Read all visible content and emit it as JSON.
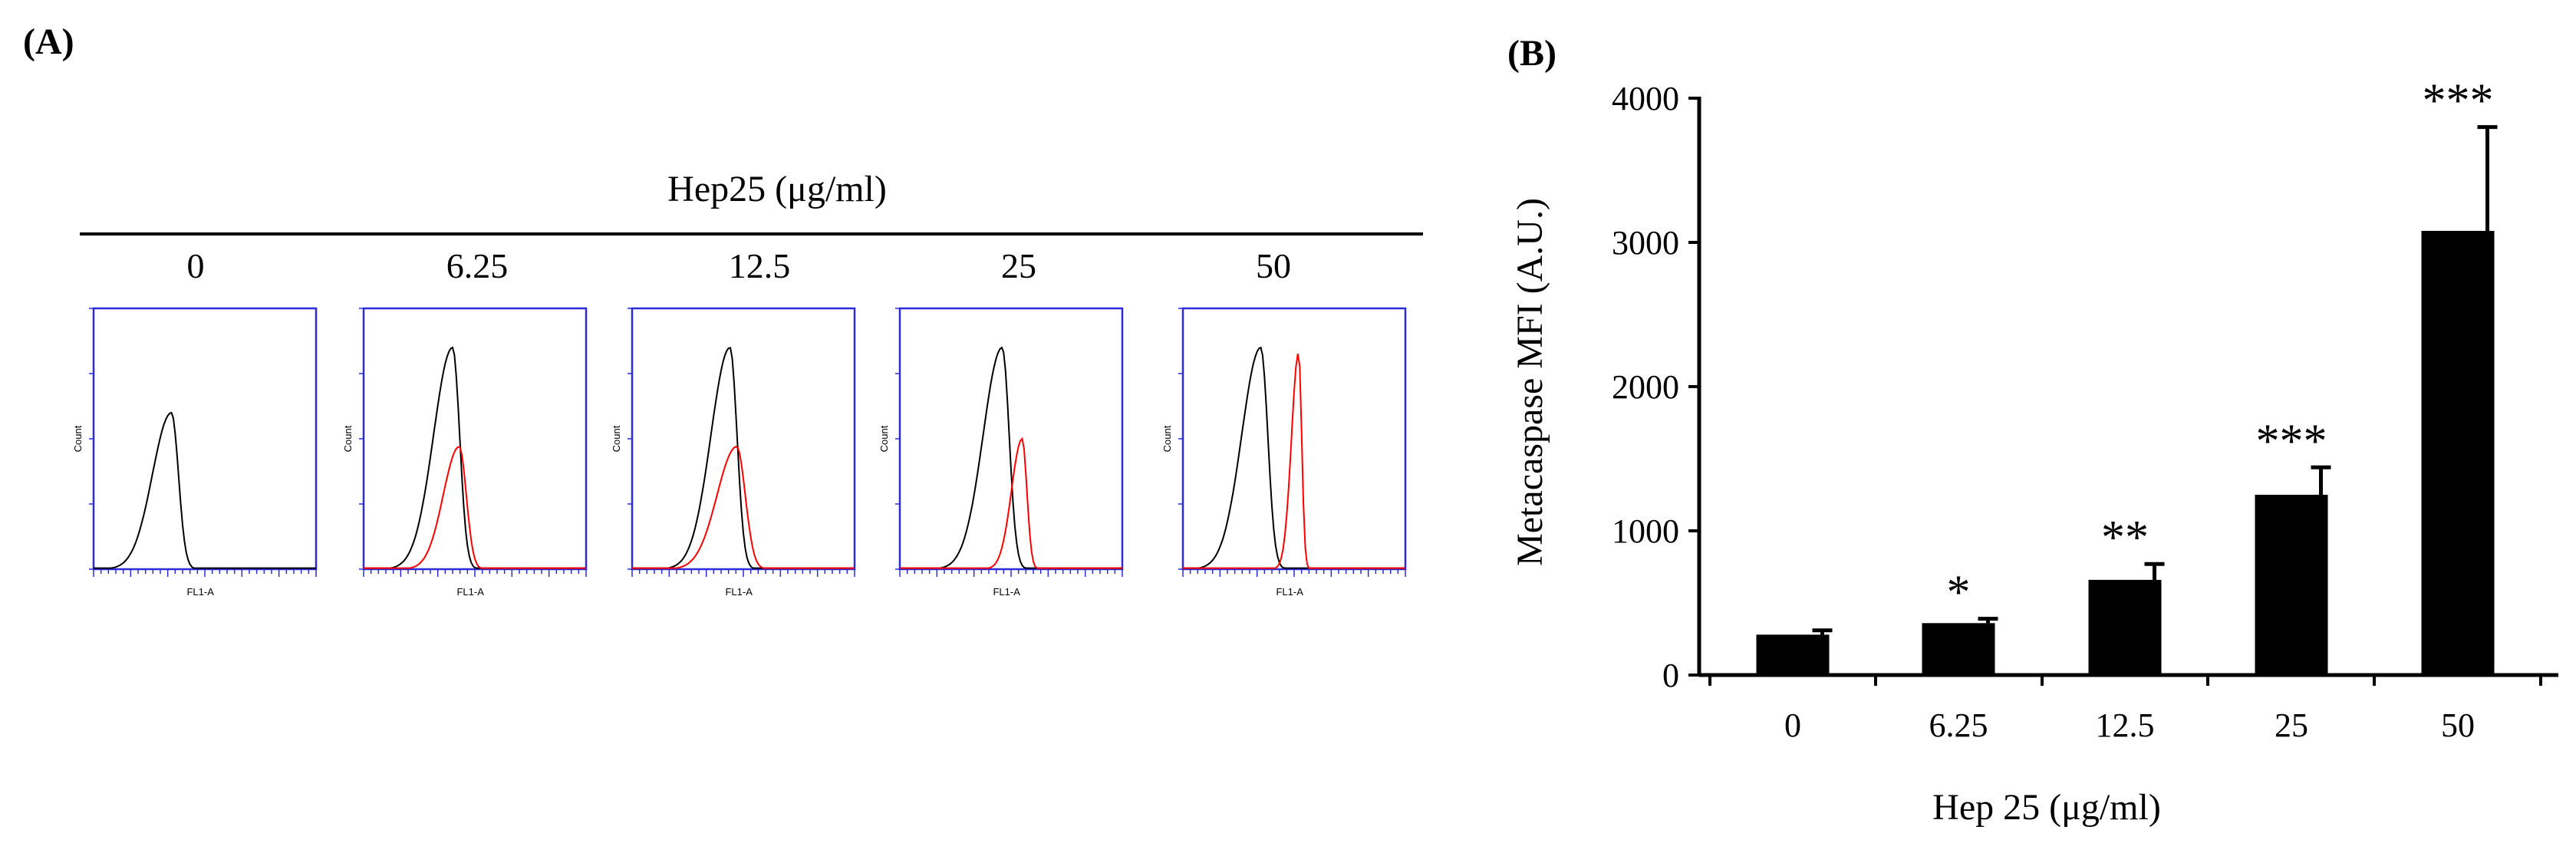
{
  "panel_a": {
    "label": "(A)",
    "header": "Hep25 (μg/ml)",
    "concentrations": [
      "0",
      "6.25",
      "12.5",
      "25",
      "50"
    ],
    "xlabel": "FL1-A",
    "ylabel": "Count",
    "colors": {
      "control": "#000000",
      "treated": "#ff0000",
      "axes": "#2b2bdc"
    }
  },
  "panel_b": {
    "label": "(B)",
    "chart_data": {
      "type": "bar",
      "title": "",
      "xlabel": "Hep 25 (μg/ml)",
      "ylabel": "Metacaspase MFI (A.U.)",
      "ylim": [
        0,
        4000
      ],
      "yticks": [
        "0",
        "1000",
        "2000",
        "3000",
        "4000"
      ],
      "categories": [
        "0",
        "6.25",
        "12.5",
        "25",
        "50"
      ],
      "values": [
        280,
        360,
        660,
        1250,
        3080
      ],
      "errors": [
        30,
        30,
        110,
        190,
        720
      ],
      "significance": [
        "",
        "*",
        "**",
        "***",
        "***"
      ],
      "bar_color": "#000000"
    }
  }
}
